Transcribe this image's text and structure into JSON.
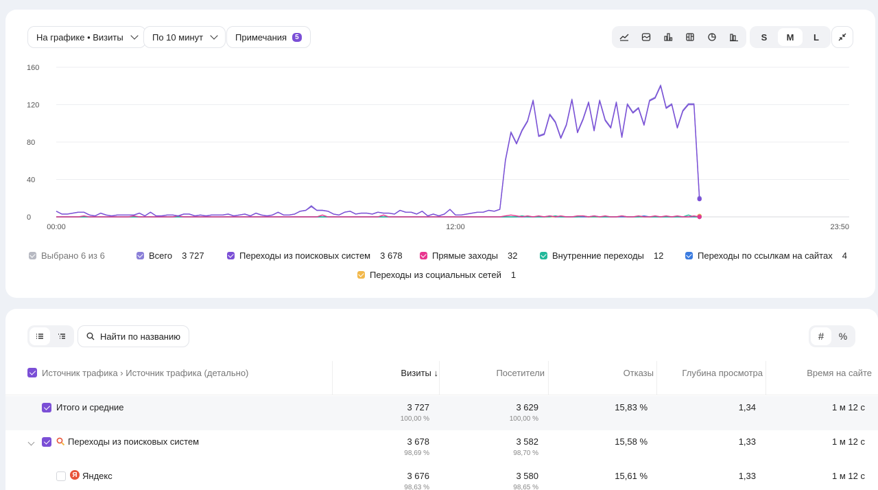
{
  "toolbar": {
    "metric_select": "На графике • Визиты",
    "interval_select": "По 10 минут",
    "notes_label": "Примечания",
    "notes_count": "5",
    "chart_type_icons": [
      "line-chart-icon",
      "area-chart-icon",
      "bar-chart-icon",
      "stacked-bar-icon",
      "pie-chart-icon",
      "column-chart-icon"
    ],
    "sizes": [
      "S",
      "M",
      "L"
    ],
    "active_size": "M"
  },
  "chart_data": {
    "type": "line",
    "x_ticks": [
      "00:00",
      "12:00",
      "23:50"
    ],
    "y_ticks": [
      "0",
      "40",
      "80",
      "120",
      "160"
    ],
    "ylim": [
      0,
      160
    ],
    "x_count": 144,
    "grid": true,
    "series": [
      {
        "name": "Переходы из поисковых систем",
        "color": "#7b4fd6",
        "values": [
          6,
          3,
          3,
          4,
          5,
          5,
          2,
          1,
          4,
          2,
          1,
          2,
          2,
          2,
          2,
          4,
          1,
          5,
          1,
          1,
          2,
          2,
          1,
          3,
          3,
          1,
          2,
          1,
          2,
          2,
          2,
          3,
          1,
          2,
          3,
          1,
          4,
          2,
          1,
          2,
          5,
          2,
          2,
          3,
          6,
          7,
          11,
          7,
          7,
          6,
          3,
          2,
          5,
          6,
          3,
          4,
          4,
          3,
          5,
          4,
          4,
          3,
          7,
          5,
          5,
          3,
          6,
          1,
          3,
          1,
          3,
          8,
          2,
          2,
          3,
          4,
          5,
          5,
          7,
          6,
          8,
          60,
          90,
          78,
          92,
          102,
          124,
          86,
          88,
          109,
          101,
          84,
          98,
          125,
          90,
          104,
          122,
          92,
          124,
          103,
          95,
          122,
          85,
          120,
          111,
          116,
          98,
          124,
          127,
          140,
          116,
          120,
          95,
          113,
          120,
          120,
          19
        ]
      },
      {
        "name": "Всего",
        "color": "#8a7fd8",
        "values": [
          6,
          3,
          3,
          4,
          5,
          5,
          2,
          1,
          4,
          2,
          1,
          2,
          2,
          2,
          2,
          4,
          1,
          5,
          1,
          1,
          2,
          2,
          1,
          3,
          3,
          1,
          2,
          1,
          2,
          2,
          2,
          3,
          1,
          2,
          3,
          1,
          4,
          2,
          1,
          2,
          5,
          2,
          2,
          3,
          6,
          7,
          12,
          7,
          7,
          6,
          3,
          2,
          5,
          6,
          3,
          4,
          4,
          3,
          5,
          4,
          4,
          3,
          7,
          5,
          5,
          3,
          6,
          1,
          3,
          1,
          3,
          8,
          2,
          2,
          3,
          4,
          5,
          5,
          7,
          6,
          8,
          61,
          91,
          79,
          93,
          103,
          125,
          87,
          89,
          110,
          102,
          85,
          99,
          126,
          91,
          105,
          123,
          93,
          125,
          104,
          96,
          123,
          86,
          121,
          112,
          117,
          99,
          125,
          128,
          141,
          117,
          121,
          96,
          114,
          121,
          121,
          20
        ]
      },
      {
        "name": "Прямые заходы",
        "color": "#e8368f",
        "values": [
          0,
          0,
          0,
          0,
          0,
          1,
          0,
          0,
          0,
          0,
          0,
          0,
          0,
          0,
          1,
          0,
          0,
          0,
          0,
          0,
          0,
          0,
          1,
          0,
          0,
          0,
          0,
          0,
          0,
          0,
          0,
          0,
          0,
          0,
          0,
          0,
          0,
          0,
          0,
          0,
          0,
          0,
          0,
          0,
          0,
          0,
          0,
          0,
          2,
          0,
          0,
          0,
          0,
          0,
          0,
          0,
          0,
          0,
          0,
          2,
          0,
          0,
          0,
          0,
          0,
          0,
          0,
          0,
          0,
          0,
          0,
          0,
          0,
          0,
          0,
          0,
          0,
          0,
          0,
          0,
          0,
          1,
          2,
          1,
          0,
          1,
          0,
          1,
          0,
          1,
          0,
          1,
          0,
          0,
          1,
          1,
          0,
          1,
          0,
          1,
          0,
          0,
          1,
          0,
          0,
          1,
          0,
          0,
          1,
          0,
          1,
          0,
          1,
          0,
          0,
          1,
          0
        ]
      },
      {
        "name": "Внутренние переходы",
        "color": "#22b89a",
        "values": [
          0,
          0,
          0,
          0,
          0,
          0,
          0,
          0,
          0,
          0,
          0,
          0,
          0,
          0,
          0,
          0,
          0,
          0,
          0,
          0,
          0,
          0,
          0,
          0,
          0,
          0,
          0,
          0,
          0,
          0,
          0,
          0,
          0,
          0,
          0,
          0,
          0,
          0,
          0,
          0,
          0,
          0,
          0,
          0,
          0,
          0,
          0,
          0,
          0,
          0,
          0,
          0,
          0,
          0,
          0,
          0,
          0,
          0,
          0,
          0,
          0,
          0,
          0,
          0,
          0,
          0,
          0,
          0,
          0,
          0,
          0,
          0,
          0,
          0,
          0,
          0,
          0,
          0,
          0,
          0,
          0,
          0,
          0,
          0,
          1,
          0,
          0,
          0,
          0,
          0,
          1,
          0,
          0,
          0,
          0,
          1,
          0,
          0,
          0,
          0,
          0,
          0,
          1,
          0,
          0,
          0,
          0,
          0,
          0,
          0,
          0,
          0,
          0,
          0,
          2,
          0,
          0
        ]
      },
      {
        "name": "Переходы по ссылкам на сайтах",
        "color": "#3a7be0",
        "values": [
          0,
          0,
          0,
          0,
          0,
          0,
          0,
          0,
          0,
          0,
          0,
          0,
          0,
          0,
          0,
          0,
          0,
          0,
          0,
          0,
          0,
          0,
          0,
          0,
          0,
          0,
          0,
          0,
          0,
          0,
          0,
          0,
          0,
          0,
          0,
          0,
          0,
          0,
          0,
          0,
          0,
          0,
          0,
          0,
          0,
          0,
          0,
          0,
          0,
          0,
          0,
          0,
          0,
          0,
          0,
          0,
          0,
          0,
          0,
          0,
          0,
          0,
          0,
          0,
          0,
          0,
          0,
          0,
          0,
          0,
          0,
          0,
          0,
          0,
          0,
          0,
          0,
          0,
          0,
          0,
          0,
          0,
          0,
          0,
          0,
          0,
          0,
          0,
          0,
          1,
          0,
          0,
          0,
          0,
          0,
          0,
          0,
          1,
          0,
          0,
          0,
          0,
          0,
          0,
          0,
          0,
          1,
          0,
          0,
          0,
          0,
          0,
          0,
          0,
          0,
          0,
          0
        ]
      },
      {
        "name": "Переходы из социальных сетей",
        "color": "#f2b84b",
        "values": [
          0,
          0,
          0,
          0,
          0,
          0,
          0,
          0,
          0,
          0,
          0,
          0,
          0,
          0,
          0,
          0,
          0,
          0,
          0,
          0,
          0,
          0,
          0,
          0,
          0,
          0,
          0,
          0,
          0,
          0,
          0,
          0,
          0,
          0,
          0,
          0,
          0,
          0,
          0,
          0,
          0,
          0,
          0,
          0,
          0,
          0,
          0,
          0,
          0,
          0,
          0,
          0,
          0,
          0,
          0,
          0,
          0,
          0,
          0,
          0,
          0,
          0,
          0,
          0,
          0,
          0,
          0,
          0,
          0,
          0,
          0,
          0,
          0,
          0,
          0,
          0,
          0,
          0,
          0,
          0,
          0,
          0,
          0,
          0,
          0,
          0,
          0,
          0,
          0,
          0,
          0,
          0,
          0,
          0,
          0,
          0,
          0,
          0,
          0,
          0,
          0,
          0,
          0,
          0,
          0,
          0,
          0,
          0,
          0,
          0,
          0,
          0,
          0,
          0,
          0,
          0,
          1
        ]
      }
    ]
  },
  "legend": {
    "selected": "Выбрано 6 из 6",
    "items": [
      {
        "label": "Всего",
        "value": "3 727",
        "color": "#8a7fd8"
      },
      {
        "label": "Переходы из поисковых систем",
        "value": "3 678",
        "color": "#7b4fd6"
      },
      {
        "label": "Прямые заходы",
        "value": "32",
        "color": "#e8368f"
      },
      {
        "label": "Внутренние переходы",
        "value": "12",
        "color": "#22b89a"
      },
      {
        "label": "Переходы по ссылкам на сайтах",
        "value": "4",
        "color": "#3a7be0"
      },
      {
        "label": "Переходы из социальных сетей",
        "value": "1",
        "color": "#f2b84b"
      }
    ]
  },
  "table": {
    "search_label": "Найти по названию",
    "hash_label": "#",
    "percent_label": "%",
    "group_header": "Источник трафика › Источник трафика (детально)",
    "columns": [
      "Визиты ↓",
      "Посетители",
      "Отказы",
      "Глубина просмотра",
      "Время на сайте"
    ],
    "rows": [
      {
        "name": "Итого и средние",
        "visits": "3 727",
        "visits_pct": "100,00 %",
        "visitors": "3 629",
        "visitors_pct": "100,00 %",
        "bounce": "15,83 %",
        "depth": "1,34",
        "time": "1 м 12 с"
      },
      {
        "name": "Переходы из поисковых систем",
        "visits": "3 678",
        "visits_pct": "98,69 %",
        "visitors": "3 582",
        "visitors_pct": "98,70 %",
        "bounce": "15,58 %",
        "depth": "1,33",
        "time": "1 м 12 с"
      },
      {
        "name": "Яндекс",
        "visits": "3 676",
        "visits_pct": "98,63 %",
        "visitors": "3 580",
        "visitors_pct": "98,65 %",
        "bounce": "15,61 %",
        "depth": "1,33",
        "time": "1 м 12 с"
      }
    ]
  }
}
